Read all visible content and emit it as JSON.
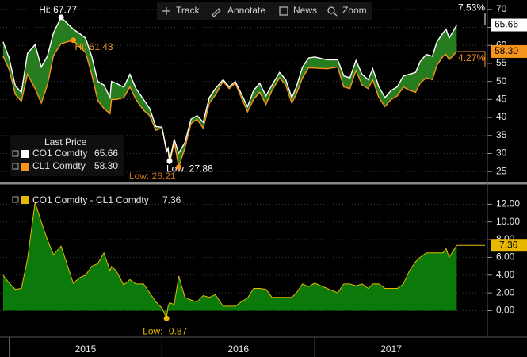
{
  "toolbar": {
    "buttons": [
      "Track",
      "Annotate",
      "News",
      "Zoom"
    ]
  },
  "chart_data": [
    {
      "type": "line",
      "legend_title": "Last Price",
      "x": [
        2014.96,
        2015.0,
        2015.04,
        2015.08,
        2015.12,
        2015.17,
        2015.21,
        2015.25,
        2015.29,
        2015.34,
        2015.42,
        2015.46,
        2015.5,
        2015.54,
        2015.58,
        2015.62,
        2015.66,
        2015.67,
        2015.7,
        2015.75,
        2015.79,
        2015.83,
        2015.88,
        2015.92,
        2015.96,
        2016.0,
        2016.03,
        2016.04,
        2016.05,
        2016.08,
        2016.11,
        2016.15,
        2016.19,
        2016.23,
        2016.27,
        2016.31,
        2016.35,
        2016.4,
        2016.44,
        2016.48,
        2016.52,
        2016.56,
        2016.6,
        2016.64,
        2016.68,
        2016.72,
        2016.77,
        2016.81,
        2016.85,
        2016.88,
        2016.92,
        2016.96,
        2017.0,
        2017.08,
        2017.15,
        2017.19,
        2017.23,
        2017.27,
        2017.31,
        2017.35,
        2017.38,
        2017.42,
        2017.46,
        2017.5,
        2017.54,
        2017.58,
        2017.62,
        2017.66,
        2017.69,
        2017.73,
        2017.77,
        2017.8,
        2017.84,
        2017.86,
        2017.88,
        2017.93
      ],
      "series": [
        {
          "name": "CO1 Comdty",
          "color": "#ffffff",
          "last_price": "65.66",
          "values": [
            61.0,
            56.4,
            48.8,
            47.0,
            57.8,
            60.2,
            54.0,
            57.0,
            63.5,
            67.77,
            64.5,
            63.3,
            62.0,
            57.0,
            50.0,
            49.0,
            45.5,
            50.0,
            49.5,
            48.4,
            52.0,
            48.0,
            45.0,
            42.5,
            37.5,
            37.3,
            30.5,
            31.5,
            27.88,
            33.9,
            30.1,
            33.0,
            39.5,
            40.5,
            38.7,
            45.5,
            48.0,
            50.5,
            48.5,
            50.0,
            46.5,
            43.0,
            47.5,
            49.5,
            46.0,
            49.0,
            52.5,
            50.5,
            45.5,
            48.5,
            54.0,
            56.5,
            56.8,
            56.0,
            56.0,
            51.5,
            51.0,
            55.8,
            52.0,
            50.5,
            53.5,
            48.5,
            45.5,
            47.5,
            48.5,
            51.5,
            52.0,
            52.5,
            55.5,
            57.5,
            57.0,
            61.0,
            63.5,
            64.5,
            62.0,
            65.66
          ]
        },
        {
          "name": "CL1 Comdty",
          "color": "#f7941d",
          "last_price": "58.30",
          "values": [
            57.0,
            53.3,
            46.4,
            44.5,
            52.0,
            48.0,
            44.0,
            49.0,
            57.2,
            60.5,
            61.43,
            59.6,
            58.0,
            52.0,
            44.7,
            42.5,
            41.0,
            45.0,
            45.0,
            45.5,
            48.5,
            45.0,
            42.0,
            40.5,
            36.5,
            37.0,
            31.37,
            31.0,
            27.0,
            33.2,
            26.21,
            31.5,
            38.3,
            39.5,
            37.0,
            44.0,
            46.2,
            50.0,
            48.0,
            49.5,
            45.5,
            41.6,
            45.0,
            47.0,
            43.6,
            47.5,
            51.0,
            49.0,
            44.0,
            46.5,
            51.0,
            53.8,
            53.7,
            53.5,
            54.0,
            48.5,
            48.0,
            53.0,
            49.0,
            48.0,
            50.5,
            45.5,
            43.0,
            45.0,
            46.0,
            48.5,
            47.5,
            47.0,
            49.5,
            51.0,
            50.5,
            54.5,
            57.0,
            57.5,
            56.0,
            58.3
          ]
        }
      ],
      "fill_between_color": "#2a8a22",
      "xlim": [
        2014.94,
        2018.13
      ],
      "ylim": [
        22.4,
        72.6
      ],
      "yticks": [
        25,
        30,
        35,
        40,
        45,
        50,
        55,
        60,
        65,
        70
      ],
      "grid": true,
      "annotations": {
        "high": [
          "Hi: 67.77",
          "Hi: 61.43"
        ],
        "low": [
          "Low: 27.88",
          "Low: 26.21"
        ],
        "change": [
          "7.53%",
          "4.27%"
        ]
      }
    },
    {
      "type": "area",
      "x": [
        2014.96,
        2015.0,
        2015.04,
        2015.08,
        2015.12,
        2015.17,
        2015.21,
        2015.25,
        2015.29,
        2015.34,
        2015.42,
        2015.46,
        2015.5,
        2015.54,
        2015.58,
        2015.62,
        2015.66,
        2015.67,
        2015.7,
        2015.75,
        2015.79,
        2015.83,
        2015.88,
        2015.92,
        2015.96,
        2016.0,
        2016.03,
        2016.04,
        2016.05,
        2016.08,
        2016.11,
        2016.15,
        2016.19,
        2016.23,
        2016.27,
        2016.31,
        2016.35,
        2016.4,
        2016.44,
        2016.48,
        2016.52,
        2016.56,
        2016.6,
        2016.64,
        2016.68,
        2016.72,
        2016.77,
        2016.81,
        2016.85,
        2016.88,
        2016.92,
        2016.96,
        2017.0,
        2017.08,
        2017.15,
        2017.19,
        2017.23,
        2017.27,
        2017.31,
        2017.35,
        2017.38,
        2017.42,
        2017.46,
        2017.5,
        2017.54,
        2017.58,
        2017.62,
        2017.66,
        2017.69,
        2017.73,
        2017.77,
        2017.8,
        2017.84,
        2017.86,
        2017.88,
        2017.93
      ],
      "series": [
        {
          "name": "CO1 Comdty - CL1 Comdty",
          "color": "#e8b800",
          "fill": "#0b7a0b",
          "last_price": "7.36",
          "values": [
            4.0,
            3.1,
            2.4,
            2.5,
            5.8,
            12.2,
            10.0,
            8.0,
            6.3,
            7.27,
            3.07,
            3.7,
            4.0,
            5.0,
            5.3,
            6.5,
            4.5,
            5.0,
            4.5,
            2.9,
            3.5,
            3.0,
            3.0,
            2.0,
            1.0,
            0.3,
            -0.87,
            0.5,
            0.88,
            0.7,
            3.89,
            1.5,
            1.2,
            1.0,
            1.7,
            1.5,
            1.8,
            0.5,
            0.5,
            0.5,
            1.0,
            1.4,
            2.5,
            2.5,
            2.4,
            1.5,
            1.5,
            1.5,
            1.5,
            2.0,
            3.0,
            2.7,
            3.1,
            2.5,
            2.0,
            3.0,
            3.0,
            2.8,
            3.0,
            2.5,
            3.0,
            3.0,
            2.5,
            2.5,
            2.5,
            3.0,
            4.5,
            5.5,
            6.0,
            6.5,
            6.5,
            6.5,
            6.5,
            7.0,
            6.0,
            7.36
          ]
        }
      ],
      "xlim": [
        2014.94,
        2018.13
      ],
      "ylim": [
        -3.0,
        14.0
      ],
      "yticks": [
        {
          "value": 0,
          "label": "0.00"
        },
        {
          "value": 2,
          "label": "2.00"
        },
        {
          "value": 4,
          "label": "4.00"
        },
        {
          "value": 6,
          "label": "6.00"
        },
        {
          "value": 8,
          "label": "8.00"
        },
        {
          "value": 10,
          "label": "10.00"
        },
        {
          "value": 12,
          "label": "12.00"
        }
      ],
      "xticks": [
        {
          "value": 2015,
          "label": "2015"
        },
        {
          "value": 2016,
          "label": "2016"
        },
        {
          "value": 2017,
          "label": "2017"
        }
      ],
      "grid": true,
      "annotations": {
        "low": [
          "Low: -0.87"
        ]
      }
    }
  ]
}
